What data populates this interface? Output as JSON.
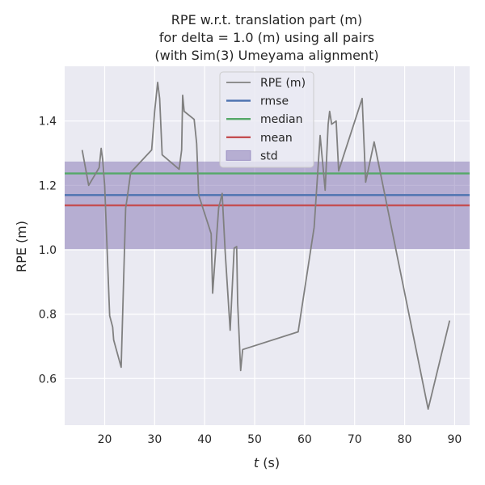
{
  "chart_data": {
    "type": "line",
    "title_lines": [
      "RPE w.r.t. translation part (m)",
      "for delta = 1.0 (m) using all pairs",
      "(with Sim(3) Umeyama alignment)"
    ],
    "xlabel_italic": "t",
    "xlabel_rest": " (s)",
    "ylabel": "RPE (m)",
    "xlim": [
      12,
      93
    ],
    "ylim": [
      0.455,
      1.57
    ],
    "xticks": [
      20,
      30,
      40,
      50,
      60,
      70,
      80,
      90
    ],
    "yticks": [
      0.6,
      0.8,
      1.0,
      1.2,
      1.4
    ],
    "ytick_labels": [
      "0.6",
      "0.8",
      "1.0",
      "1.2",
      "1.4"
    ],
    "grid": true,
    "legend_position": "top-center",
    "series": [
      {
        "name": "RPE (m)",
        "color": "#808080",
        "x": [
          15.5,
          16.8,
          18.9,
          19.3,
          19.6,
          20.0,
          21.0,
          21.6,
          21.8,
          23.3,
          24.2,
          24.5,
          25.2,
          29.4,
          30.0,
          30.6,
          31.0,
          31.5,
          34.9,
          35.4,
          35.6,
          35.9,
          37.9,
          38.4,
          38.8,
          41.3,
          41.6,
          42.8,
          43.5,
          44.1,
          45.1,
          45.9,
          46.4,
          46.6,
          47.2,
          47.6,
          58.7,
          61.9,
          63.1,
          64.1,
          64.7,
          65.0,
          65.4,
          66.3,
          66.8,
          71.5,
          72.2,
          73.9,
          84.7,
          89.0
        ],
        "y": [
          1.31,
          1.2,
          1.255,
          1.315,
          1.28,
          1.2,
          0.795,
          0.76,
          0.72,
          0.635,
          1.13,
          1.16,
          1.24,
          1.31,
          1.43,
          1.52,
          1.47,
          1.295,
          1.25,
          1.31,
          1.48,
          1.43,
          1.405,
          1.33,
          1.17,
          1.05,
          0.865,
          1.13,
          1.175,
          0.995,
          0.75,
          1.005,
          1.01,
          0.835,
          0.625,
          0.69,
          0.745,
          1.07,
          1.355,
          1.185,
          1.39,
          1.43,
          1.39,
          1.4,
          1.245,
          1.47,
          1.21,
          1.335,
          0.505,
          0.78
        ]
      },
      {
        "name": "rmse",
        "color": "#4c72b0",
        "value": 1.17
      },
      {
        "name": "median",
        "color": "#55a868",
        "value": 1.237
      },
      {
        "name": "mean",
        "color": "#c44e52",
        "value": 1.138
      },
      {
        "name": "std",
        "color": "#8172b2",
        "range": [
          1.002,
          1.274
        ]
      }
    ]
  }
}
